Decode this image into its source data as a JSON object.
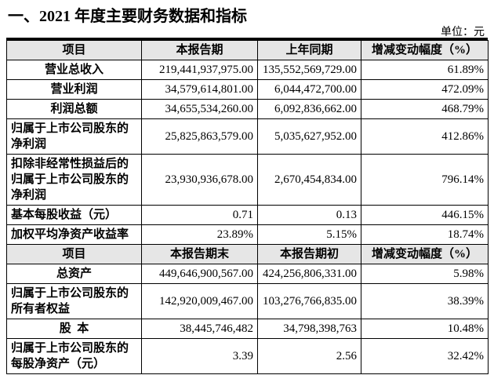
{
  "header": {
    "title": "一、2021 年度主要财务数据和指标",
    "unit": "单位：元"
  },
  "table": {
    "rows": [
      [
        "项目",
        "本报告期",
        "上年同期",
        "增减变动幅度（%）"
      ],
      [
        "营业总收入",
        "219,441,937,975.00",
        "135,552,569,729.00",
        "61.89%"
      ],
      [
        "营业利润",
        "34,579,614,801.00",
        "6,044,472,700.00",
        "472.09%"
      ],
      [
        "利润总额",
        "34,655,534,260.00",
        "6,092,836,662.00",
        "468.79%"
      ],
      [
        "归属于上市公司股东的净利润",
        "25,825,863,579.00",
        "5,035,627,952.00",
        "412.86%"
      ],
      [
        "扣除非经常性损益后的归属于上市公司股东的净利润",
        "23,930,936,678.00",
        "2,670,454,834.00",
        "796.14%"
      ],
      [
        "基本每股收益（元）",
        "0.71",
        "0.13",
        "446.15%"
      ],
      [
        "加权平均净资产收益率",
        "23.89%",
        "5.15%",
        "18.74%"
      ],
      [
        "项目",
        "本报告期末",
        "本报告期初",
        "增减变动幅度（%）"
      ],
      [
        "总资产",
        "449,646,900,567.00",
        "424,256,806,331.00",
        "5.98%"
      ],
      [
        "归属于上市公司股东的所有者权益",
        "142,920,009,467.00",
        "103,276,766,835.00",
        "38.39%"
      ],
      [
        "股  本",
        "38,445,746,482",
        "34,798,398,763",
        "10.48%"
      ],
      [
        "归属于上市公司股东的每股净资产（元）",
        "3.39",
        "2.56",
        "32.42%"
      ]
    ]
  }
}
